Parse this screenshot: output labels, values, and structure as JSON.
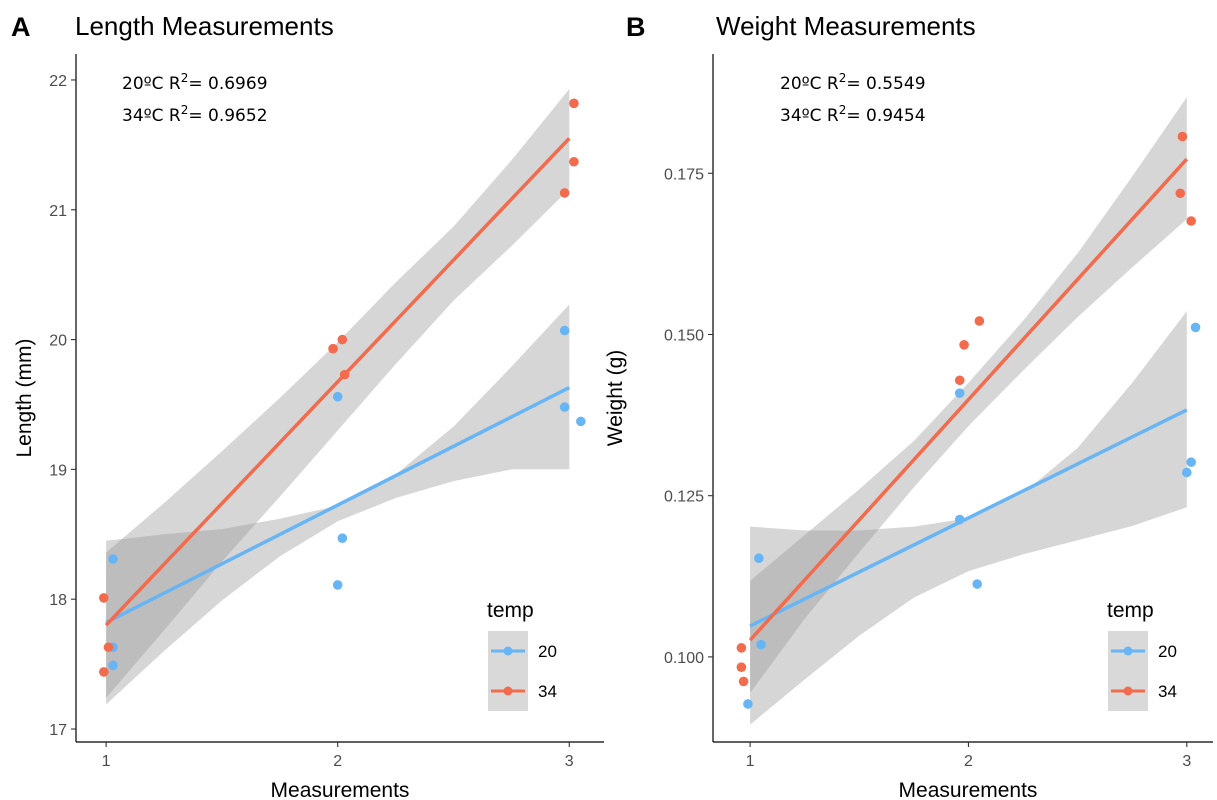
{
  "chart_data": [
    {
      "type": "scatter",
      "panel_label": "A",
      "title": "Length Measurements",
      "xlabel": "Measurements",
      "ylabel": "Length (mm)",
      "xlim": [
        0.87,
        3.15
      ],
      "ylim": [
        16.9,
        22.2
      ],
      "x_ticks": [
        1,
        2,
        3
      ],
      "x_tick_labels": [
        "1",
        "2",
        "3"
      ],
      "y_ticks": [
        17,
        18,
        19,
        20,
        21,
        22
      ],
      "y_tick_labels": [
        "17",
        "18",
        "19",
        "20",
        "21",
        "22"
      ],
      "grid": false,
      "legend": {
        "title": "temp",
        "position": "bottom-right",
        "entries": [
          "20",
          "34"
        ]
      },
      "annotations": [
        {
          "label": "20ºC R",
          "superscript": "2",
          "suffix": "= 0.6969"
        },
        {
          "label": "34ºC R",
          "superscript": "2",
          "suffix": "= 0.9652"
        }
      ],
      "series": [
        {
          "name": "20",
          "color": "#67b5f4",
          "points": [
            [
              1.03,
              18.31
            ],
            [
              1.03,
              17.63
            ],
            [
              1.03,
              17.49
            ],
            [
              2.0,
              19.56
            ],
            [
              2.02,
              18.47
            ],
            [
              2.0,
              18.11
            ],
            [
              2.98,
              20.07
            ],
            [
              2.98,
              19.48
            ],
            [
              3.05,
              19.37
            ]
          ],
          "fit": {
            "x": [
              1,
              3
            ],
            "y": [
              17.82,
              19.63
            ]
          },
          "band": {
            "x": [
              1,
              1.25,
              1.5,
              1.75,
              2,
              2.25,
              2.5,
              2.75,
              3
            ],
            "lower": [
              17.19,
              17.6,
              17.99,
              18.33,
              18.6,
              18.78,
              18.91,
              19.0,
              19.0
            ],
            "upper": [
              18.45,
              18.5,
              18.54,
              18.62,
              18.72,
              18.96,
              19.33,
              19.79,
              20.27
            ]
          }
        },
        {
          "name": "34",
          "color": "#f26b4d",
          "points": [
            [
              0.99,
              18.01
            ],
            [
              1.01,
              17.63
            ],
            [
              0.99,
              17.44
            ],
            [
              1.98,
              19.93
            ],
            [
              2.02,
              20.0
            ],
            [
              2.03,
              19.73
            ],
            [
              3.02,
              21.82
            ],
            [
              3.02,
              21.37
            ],
            [
              2.98,
              21.13
            ]
          ],
          "fit": {
            "x": [
              1,
              3
            ],
            "y": [
              17.8,
              21.55
            ]
          },
          "band": {
            "x": [
              1,
              1.25,
              1.5,
              1.75,
              2,
              2.25,
              2.5,
              2.75,
              3
            ],
            "lower": [
              17.24,
              17.76,
              18.29,
              18.79,
              19.3,
              19.81,
              20.3,
              20.72,
              21.16
            ],
            "upper": [
              18.36,
              18.74,
              19.14,
              19.55,
              19.98,
              20.44,
              20.87,
              21.38,
              21.93
            ]
          }
        }
      ]
    },
    {
      "type": "scatter",
      "panel_label": "B",
      "title": "Weight Measurements",
      "xlabel": "Measurements",
      "ylabel": "Weight (g)",
      "xlim": [
        0.83,
        3.12
      ],
      "ylim": [
        0.0868,
        0.1935
      ],
      "x_ticks": [
        1,
        2,
        3
      ],
      "x_tick_labels": [
        "1",
        "2",
        "3"
      ],
      "y_ticks": [
        0.1,
        0.125,
        0.15,
        0.175
      ],
      "y_tick_labels": [
        "0.100",
        "0.125",
        "0.150",
        "0.175"
      ],
      "grid": false,
      "legend": {
        "title": "temp",
        "position": "bottom-right",
        "entries": [
          "20",
          "34"
        ]
      },
      "annotations": [
        {
          "label": "20ºC R",
          "superscript": "2",
          "suffix": "= 0.5549"
        },
        {
          "label": "34ºC R",
          "superscript": "2",
          "suffix": "= 0.9454"
        }
      ],
      "series": [
        {
          "name": "20",
          "color": "#67b5f4",
          "points": [
            [
              1.04,
              0.1153
            ],
            [
              1.05,
              0.1019
            ],
            [
              0.99,
              0.0927
            ],
            [
              1.96,
              0.1409
            ],
            [
              1.96,
              0.1213
            ],
            [
              2.04,
              0.1113
            ],
            [
              3.04,
              0.1511
            ],
            [
              3.02,
              0.1302
            ],
            [
              3.0,
              0.1286
            ]
          ],
          "fit": {
            "x": [
              1,
              3
            ],
            "y": [
              0.1048,
              0.1383
            ]
          },
          "band": {
            "x": [
              1,
              1.25,
              1.5,
              1.75,
              2,
              2.25,
              2.5,
              2.75,
              3
            ],
            "lower": [
              0.0895,
              0.0965,
              0.1033,
              0.1092,
              0.1133,
              0.1159,
              0.1181,
              0.1203,
              0.1232
            ],
            "upper": [
              0.1202,
              0.1196,
              0.1196,
              0.1202,
              0.1215,
              0.1254,
              0.1324,
              0.1425,
              0.1536
            ]
          }
        },
        {
          "name": "34",
          "color": "#f26b4d",
          "points": [
            [
              0.96,
              0.1014
            ],
            [
              0.96,
              0.0984
            ],
            [
              0.97,
              0.0962
            ],
            [
              1.96,
              0.1429
            ],
            [
              1.98,
              0.1484
            ],
            [
              2.05,
              0.1521
            ],
            [
              2.98,
              0.1807
            ],
            [
              2.97,
              0.1719
            ],
            [
              3.02,
              0.1676
            ]
          ],
          "fit": {
            "x": [
              1,
              3
            ],
            "y": [
              0.1026,
              0.1772
            ]
          },
          "band": {
            "x": [
              1,
              1.25,
              1.5,
              1.75,
              2,
              2.25,
              2.5,
              2.75,
              3
            ],
            "lower": [
              0.0944,
              0.1059,
              0.1162,
              0.1263,
              0.1358,
              0.1444,
              0.1527,
              0.1604,
              0.1679
            ],
            "upper": [
              0.1118,
              0.1189,
              0.126,
              0.1335,
              0.1425,
              0.1521,
              0.1626,
              0.1745,
              0.1868
            ]
          }
        }
      ]
    }
  ]
}
